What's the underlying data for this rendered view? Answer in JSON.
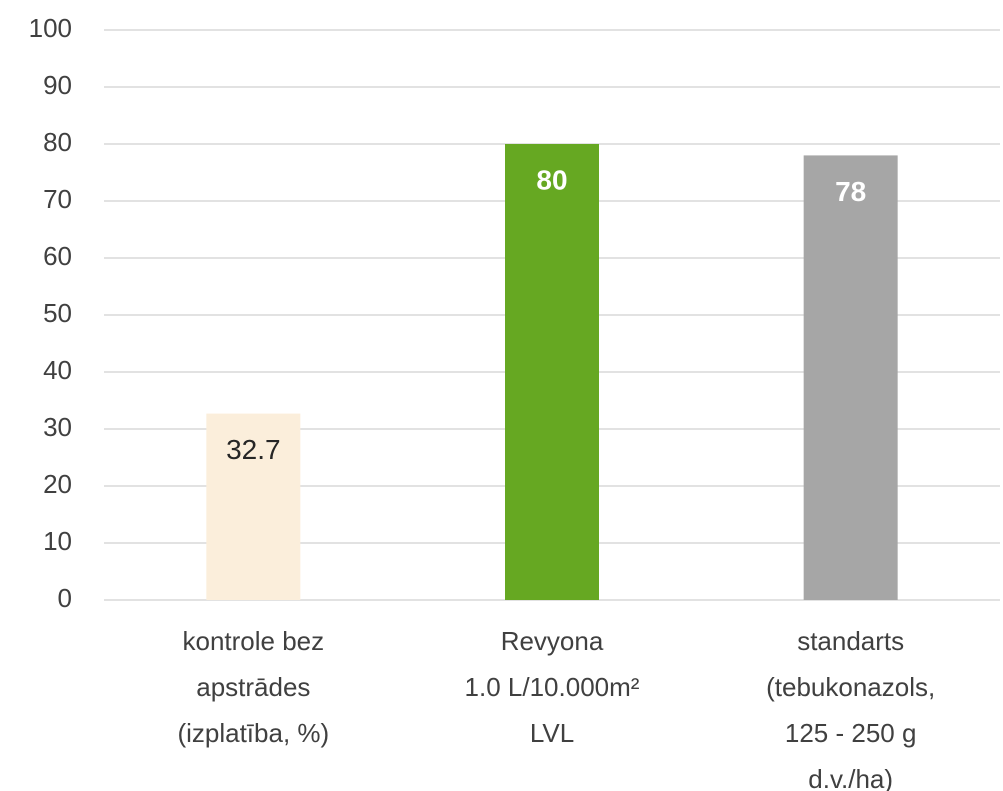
{
  "chart_data": {
    "type": "bar",
    "categories": [
      [
        "kontrole bez",
        "apstrādes",
        "(izplatība, %)"
      ],
      [
        "Revyona",
        "1.0 L/10.000m²",
        "LVL"
      ],
      [
        "standarts",
        "(tebukonazols,",
        "125 - 250 g",
        "d.v./ha)"
      ]
    ],
    "values": [
      32.7,
      80,
      78
    ],
    "colors": [
      "#fbeedb",
      "#66a822",
      "#a6a6a6"
    ],
    "value_label_colors": [
      "#262626",
      "#ffffff",
      "#ffffff"
    ],
    "ylim": [
      0,
      100
    ],
    "yticks": [
      0,
      10,
      20,
      30,
      40,
      50,
      60,
      70,
      80,
      90,
      100
    ],
    "grid": true
  }
}
